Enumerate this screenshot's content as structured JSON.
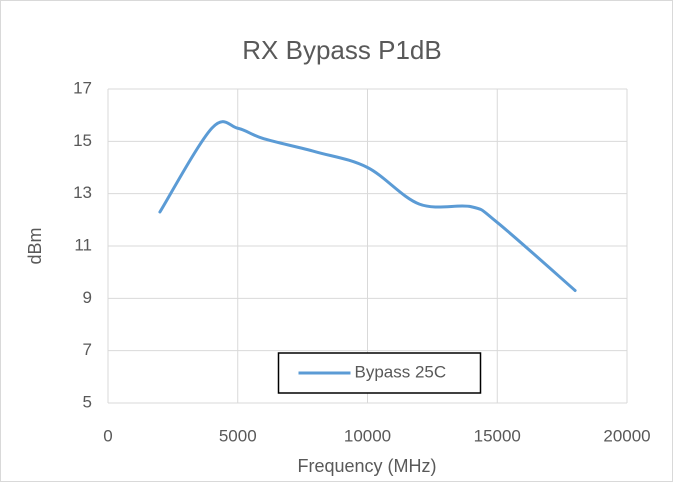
{
  "chart_data": {
    "type": "line",
    "smooth": true,
    "title": "RX Bypass P1dB",
    "x_label": "Frequency (MHz)",
    "y_label": "dBm",
    "x": [
      2000,
      4000,
      5000,
      6000,
      8000,
      10000,
      12000,
      14000,
      15000,
      18000
    ],
    "series": [
      {
        "name": "Bypass 25C",
        "color": "#5b9bd5",
        "values": [
          12.3,
          15.5,
          15.5,
          15.1,
          14.6,
          14.0,
          12.6,
          12.5,
          11.9,
          9.3
        ]
      }
    ],
    "xlim": [
      0,
      20000
    ],
    "xticks": [
      0,
      5000,
      10000,
      15000,
      20000
    ],
    "ylim": [
      5,
      17
    ],
    "yticks": [
      5,
      7,
      9,
      11,
      13,
      15,
      17
    ],
    "grid": true,
    "legend": "bottom"
  }
}
